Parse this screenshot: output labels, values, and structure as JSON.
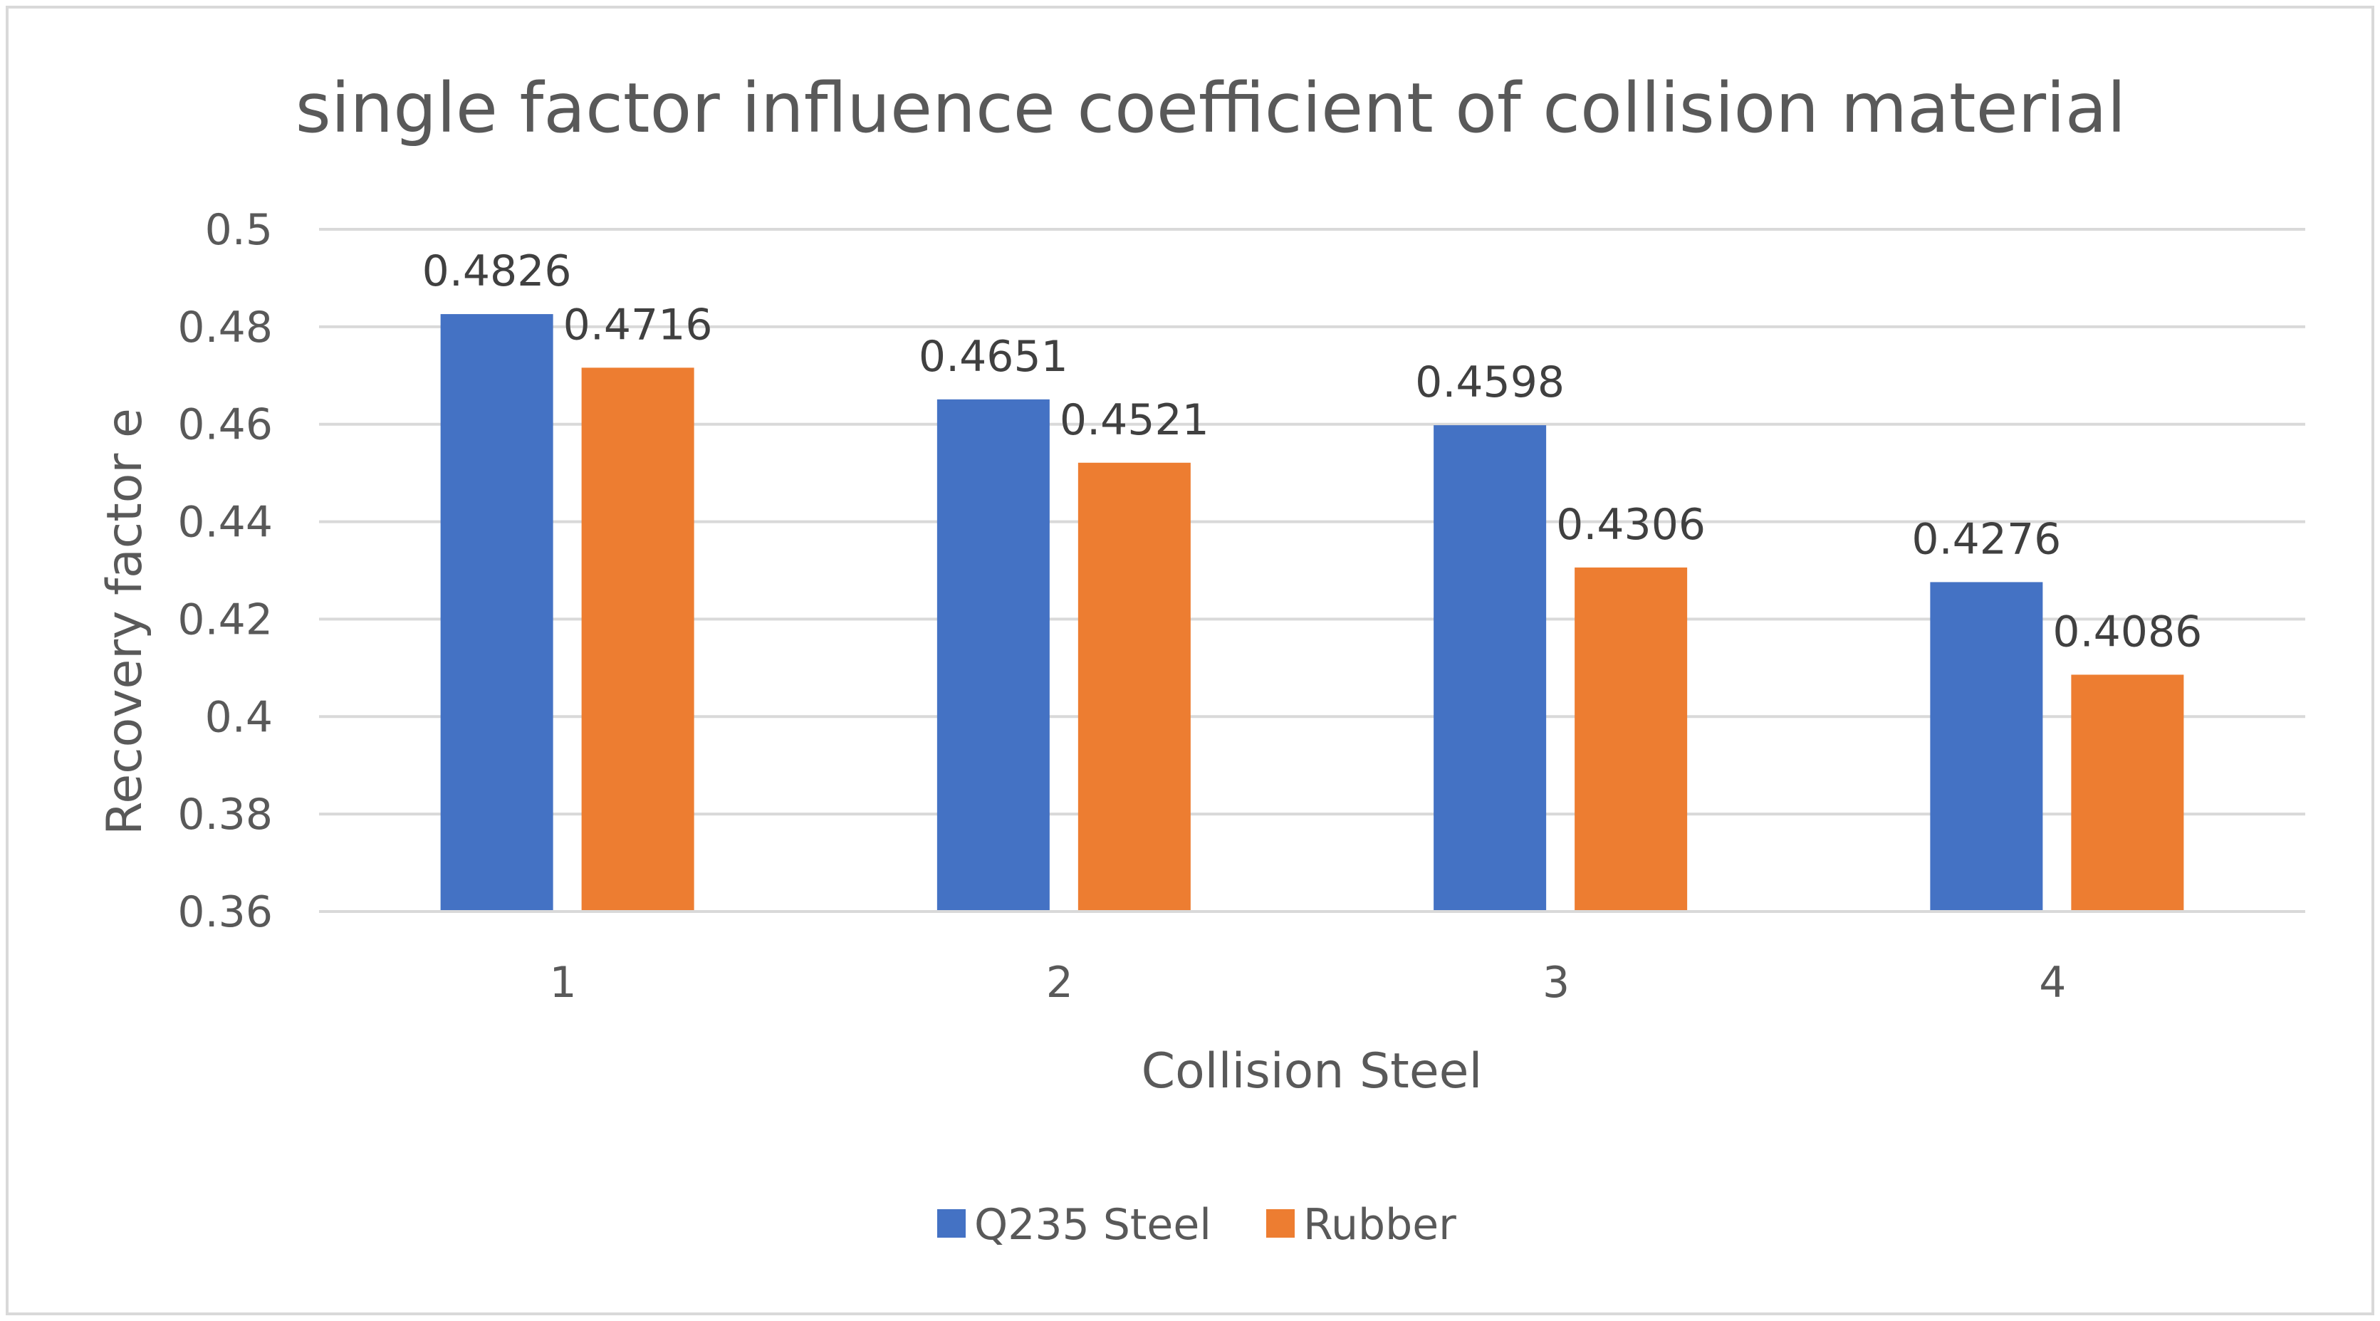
{
  "chart_data": {
    "type": "bar",
    "title": "single factor influence coefficient of collision material",
    "xlabel": "Collision Steel",
    "ylabel": "Recovery factor e",
    "categories": [
      "1",
      "2",
      "3",
      "4"
    ],
    "series": [
      {
        "name": "Q235 Steel",
        "color": "#4472C4",
        "values": [
          0.4826,
          0.4651,
          0.4598,
          0.4276
        ],
        "labels": [
          "0.4826",
          "0.4651",
          "0.4598",
          "0.4276"
        ]
      },
      {
        "name": "Rubber",
        "color": "#ED7D31",
        "values": [
          0.4716,
          0.4521,
          0.4306,
          0.4086
        ],
        "labels": [
          "0.4716",
          "0.4521",
          "0.4306",
          "0.4086"
        ]
      }
    ],
    "ylim": [
      0.36,
      0.5
    ],
    "yticks": [
      0.36,
      0.38,
      0.4,
      0.42,
      0.44,
      0.46,
      0.48,
      0.5
    ],
    "ytick_labels": [
      "0.36",
      "0.38",
      "0.4",
      "0.42",
      "0.44",
      "0.46",
      "0.48",
      "0.5"
    ],
    "grid": true,
    "legend_position": "bottom"
  }
}
